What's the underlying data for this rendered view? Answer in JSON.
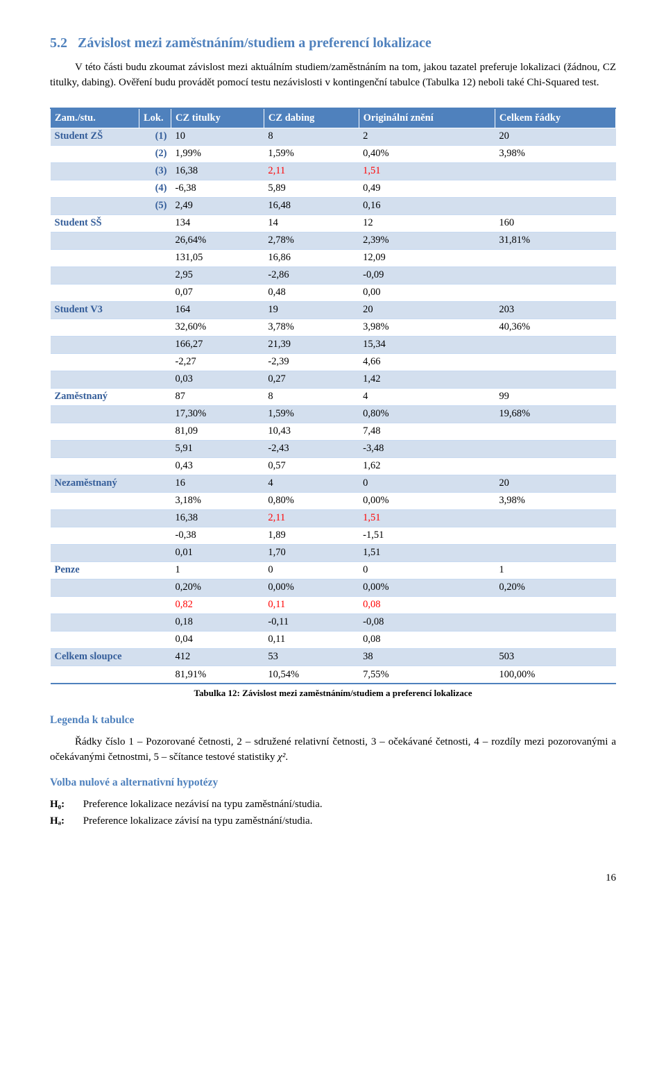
{
  "heading_number": "5.2",
  "heading_text": "Závislost mezi zaměstnáním/studiem a preferencí lokalizace",
  "intro_text": "V této části budu zkoumat závislost mezi aktuálním studiem/zaměstnáním na tom, jakou tazatel preferuje lokalizaci (žádnou, CZ titulky, dabing). Ověření budu provádět pomocí testu nezávislosti v kontingenční tabulce (Tabulka 12) neboli také Chi-Squared test.",
  "table": {
    "headers": [
      "Zam./stu.",
      "Lok.",
      "CZ titulky",
      "CZ dabing",
      "Originální znění",
      "Celkem řádky"
    ],
    "rows": [
      {
        "group": "Student ZŠ",
        "tag": "(1)",
        "cells": [
          "10",
          "8",
          "2",
          "20"
        ],
        "red": []
      },
      {
        "group": "",
        "tag": "(2)",
        "cells": [
          "1,99%",
          "1,59%",
          "0,40%",
          "3,98%"
        ],
        "red": []
      },
      {
        "group": "",
        "tag": "(3)",
        "cells": [
          "16,38",
          "2,11",
          "1,51",
          ""
        ],
        "red": [
          1,
          2
        ]
      },
      {
        "group": "",
        "tag": "(4)",
        "cells": [
          "-6,38",
          "5,89",
          "0,49",
          ""
        ],
        "red": []
      },
      {
        "group": "",
        "tag": "(5)",
        "cells": [
          "2,49",
          "16,48",
          "0,16",
          ""
        ],
        "red": []
      },
      {
        "group": "Student SŠ",
        "tag": "",
        "cells": [
          "134",
          "14",
          "12",
          "160"
        ],
        "red": []
      },
      {
        "group": "",
        "tag": "",
        "cells": [
          "26,64%",
          "2,78%",
          "2,39%",
          "31,81%"
        ],
        "red": []
      },
      {
        "group": "",
        "tag": "",
        "cells": [
          "131,05",
          "16,86",
          "12,09",
          ""
        ],
        "red": []
      },
      {
        "group": "",
        "tag": "",
        "cells": [
          "2,95",
          "-2,86",
          "-0,09",
          ""
        ],
        "red": []
      },
      {
        "group": "",
        "tag": "",
        "cells": [
          "0,07",
          "0,48",
          "0,00",
          ""
        ],
        "red": []
      },
      {
        "group": "Student V3",
        "tag": "",
        "cells": [
          "164",
          "19",
          "20",
          "203"
        ],
        "red": []
      },
      {
        "group": "",
        "tag": "",
        "cells": [
          "32,60%",
          "3,78%",
          "3,98%",
          "40,36%"
        ],
        "red": []
      },
      {
        "group": "",
        "tag": "",
        "cells": [
          "166,27",
          "21,39",
          "15,34",
          ""
        ],
        "red": []
      },
      {
        "group": "",
        "tag": "",
        "cells": [
          "-2,27",
          "-2,39",
          "4,66",
          ""
        ],
        "red": []
      },
      {
        "group": "",
        "tag": "",
        "cells": [
          "0,03",
          "0,27",
          "1,42",
          ""
        ],
        "red": []
      },
      {
        "group": "Zaměstnaný",
        "tag": "",
        "cells": [
          "87",
          "8",
          "4",
          "99"
        ],
        "red": []
      },
      {
        "group": "",
        "tag": "",
        "cells": [
          "17,30%",
          "1,59%",
          "0,80%",
          "19,68%"
        ],
        "red": []
      },
      {
        "group": "",
        "tag": "",
        "cells": [
          "81,09",
          "10,43",
          "7,48",
          ""
        ],
        "red": []
      },
      {
        "group": "",
        "tag": "",
        "cells": [
          "5,91",
          "-2,43",
          "-3,48",
          ""
        ],
        "red": []
      },
      {
        "group": "",
        "tag": "",
        "cells": [
          "0,43",
          "0,57",
          "1,62",
          ""
        ],
        "red": []
      },
      {
        "group": "Nezaměstnaný",
        "tag": "",
        "cells": [
          "16",
          "4",
          "0",
          "20"
        ],
        "red": []
      },
      {
        "group": "",
        "tag": "",
        "cells": [
          "3,18%",
          "0,80%",
          "0,00%",
          "3,98%"
        ],
        "red": []
      },
      {
        "group": "",
        "tag": "",
        "cells": [
          "16,38",
          "2,11",
          "1,51",
          ""
        ],
        "red": [
          1,
          2
        ]
      },
      {
        "group": "",
        "tag": "",
        "cells": [
          "-0,38",
          "1,89",
          "-1,51",
          ""
        ],
        "red": []
      },
      {
        "group": "",
        "tag": "",
        "cells": [
          "0,01",
          "1,70",
          "1,51",
          ""
        ],
        "red": []
      },
      {
        "group": "Penze",
        "tag": "",
        "cells": [
          "1",
          "0",
          "0",
          "1"
        ],
        "red": []
      },
      {
        "group": "",
        "tag": "",
        "cells": [
          "0,20%",
          "0,00%",
          "0,00%",
          "0,20%"
        ],
        "red": []
      },
      {
        "group": "",
        "tag": "",
        "cells": [
          "0,82",
          "0,11",
          "0,08",
          ""
        ],
        "red": [
          0,
          1,
          2
        ]
      },
      {
        "group": "",
        "tag": "",
        "cells": [
          "0,18",
          "-0,11",
          "-0,08",
          ""
        ],
        "red": []
      },
      {
        "group": "",
        "tag": "",
        "cells": [
          "0,04",
          "0,11",
          "0,08",
          ""
        ],
        "red": []
      },
      {
        "group": "Celkem sloupce",
        "tag": "",
        "cells": [
          "412",
          "53",
          "38",
          "503"
        ],
        "red": []
      },
      {
        "group": "",
        "tag": "",
        "cells": [
          "81,91%",
          "10,54%",
          "7,55%",
          "100,00%"
        ],
        "red": []
      }
    ]
  },
  "table_caption": "Tabulka 12: Závislost mezi zaměstnáním/studiem a preferencí lokalizace",
  "legend_title": "Legenda k tabulce",
  "legend_text": "Řádky číslo 1 – Pozorované četnosti, 2 – sdružené relativní četnosti, 3 – očekávané četnosti, 4 – rozdíly mezi pozorovanými a očekávanými četnostmi, 5 – sčítance testové statistiky ",
  "legend_math": "χ²",
  "legend_after_math": ".",
  "hyp_title": "Volba nulové a alternativní hypotézy",
  "h0_key": "H₀:",
  "h0_text": "Preference lokalizace nezávisí na typu zaměstnání/studia.",
  "ha_key": "Hₐ:",
  "ha_text": "Preference lokalizace závisí na typu zaměstnání/studia.",
  "page_number": "16"
}
